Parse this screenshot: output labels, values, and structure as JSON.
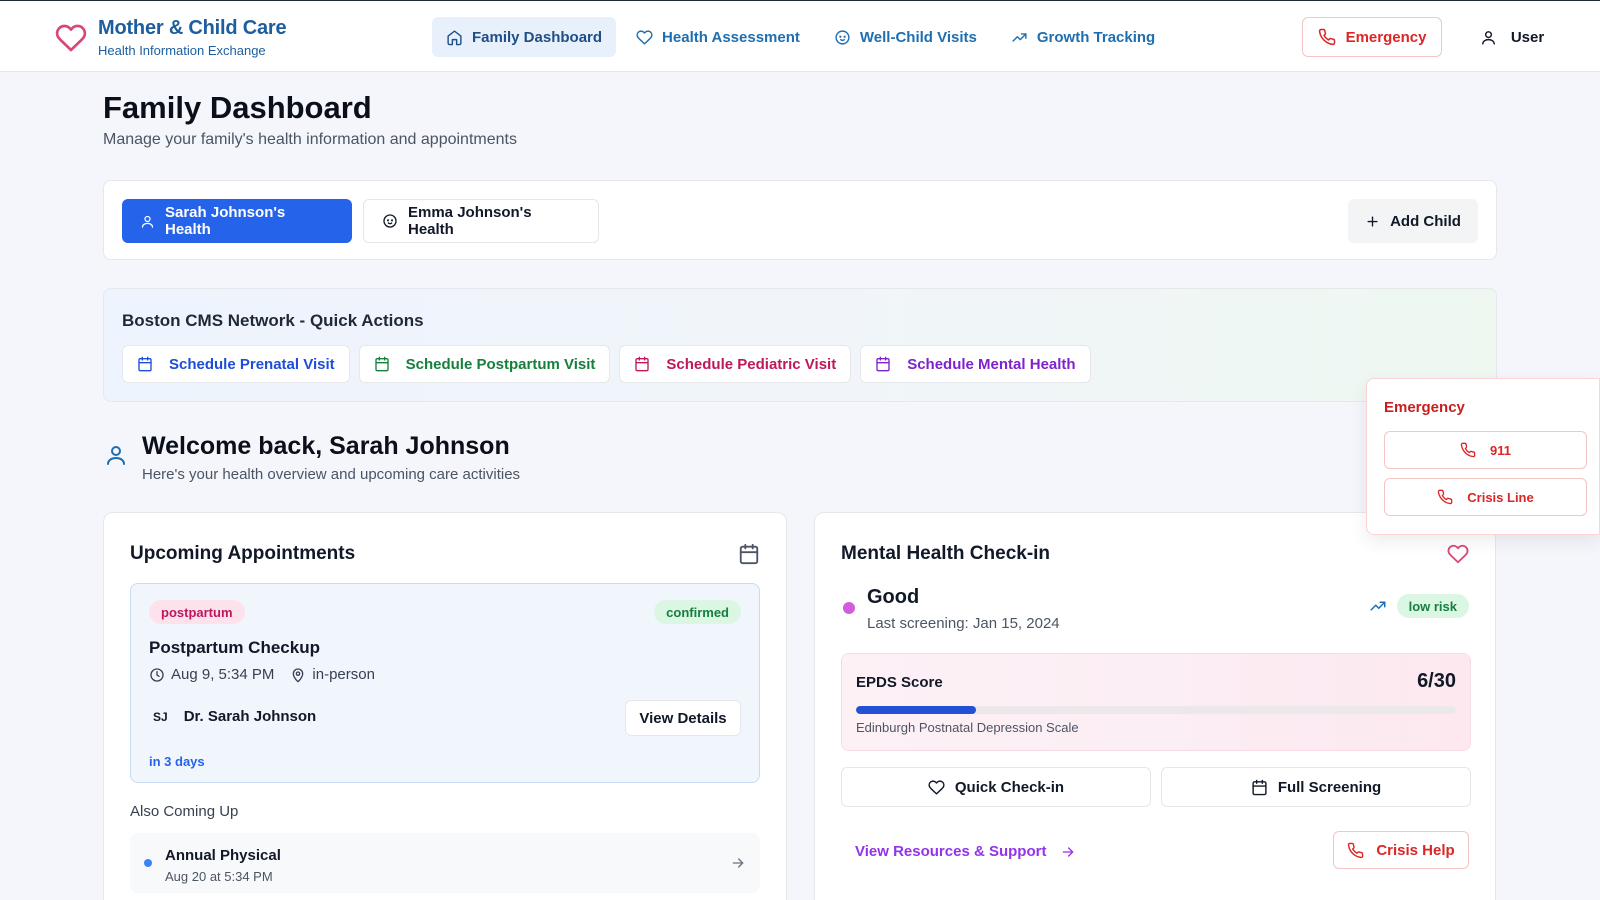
{
  "brand": {
    "title": "Mother & Child Care",
    "subtitle": "Health Information Exchange",
    "icon": "heart-icon"
  },
  "nav": {
    "items": [
      {
        "label": "Family Dashboard",
        "icon": "home-icon",
        "active": true
      },
      {
        "label": "Health Assessment",
        "icon": "heart-icon",
        "active": false
      },
      {
        "label": "Well-Child Visits",
        "icon": "baby-icon",
        "active": false
      },
      {
        "label": "Growth Tracking",
        "icon": "trending-up-icon",
        "active": false
      }
    ],
    "emergency_label": "Emergency",
    "user_label": "User"
  },
  "page": {
    "title": "Family Dashboard",
    "subtitle": "Manage your family's health information and appointments"
  },
  "profiles": {
    "tabs": [
      {
        "label": "Sarah Johnson's Health",
        "icon": "user-icon",
        "active": true
      },
      {
        "label": "Emma Johnson's Health",
        "icon": "baby-icon",
        "active": false
      }
    ],
    "add_child_label": "Add Child"
  },
  "quick_actions": {
    "title": "Boston CMS Network - Quick Actions",
    "items": [
      {
        "label": "Schedule Prenatal Visit",
        "color": "#1d4ed8"
      },
      {
        "label": "Schedule Postpartum Visit",
        "color": "#15803d"
      },
      {
        "label": "Schedule Pediatric Visit",
        "color": "#be185d"
      },
      {
        "label": "Schedule Mental Health",
        "color": "#7e22ce"
      }
    ]
  },
  "welcome": {
    "title": "Welcome back, Sarah Johnson",
    "subtitle": "Here's your health overview and upcoming care activities"
  },
  "emergency_panel": {
    "title": "Emergency",
    "buttons": [
      {
        "label": "911"
      },
      {
        "label": "Crisis Line"
      }
    ]
  },
  "appointments": {
    "title": "Upcoming Appointments",
    "primary": {
      "type": "postpartum",
      "status": "confirmed",
      "title": "Postpartum Checkup",
      "time": "Aug 9, 5:34 PM",
      "location": "in-person",
      "doctor_initials": "SJ",
      "doctor": "Dr. Sarah Johnson",
      "view_label": "View Details",
      "relative": "in 3 days"
    },
    "also_label": "Also Coming Up",
    "also": [
      {
        "title": "Annual Physical",
        "when": "Aug 20 at 5:34 PM"
      }
    ]
  },
  "mental_health": {
    "title": "Mental Health Check-in",
    "status": "Good",
    "last_screening": "Last screening: Jan 15, 2024",
    "risk": "low risk",
    "epds": {
      "label": "EPDS Score",
      "score_text": "6/30",
      "score": 6,
      "max": 30,
      "description": "Edinburgh Postnatal Depression Scale"
    },
    "quick_checkin_label": "Quick Check-in",
    "full_screening_label": "Full Screening",
    "resources_label": "View Resources & Support",
    "crisis_help_label": "Crisis Help"
  }
}
